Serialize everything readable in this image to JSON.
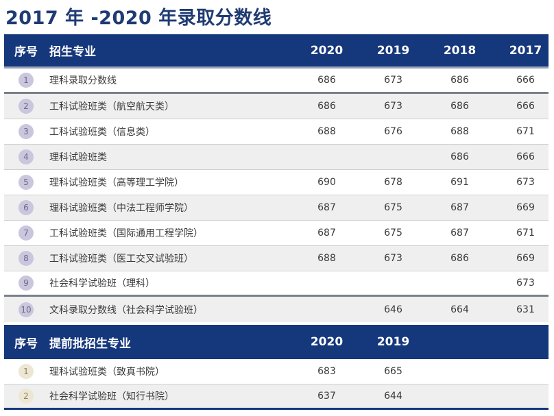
{
  "title": "2017 年 -2020 年录取分数线",
  "table1": {
    "headers": {
      "no": "序号",
      "name": "招生专业",
      "y1": "2020",
      "y2": "2019",
      "y3": "2018",
      "y4": "2017"
    },
    "rows": [
      {
        "no": "1",
        "name": "理科录取分数线",
        "y1": "686",
        "y2": "673",
        "y3": "686",
        "y4": "666"
      },
      {
        "no": "2",
        "name": "工科试验班类（航空航天类）",
        "y1": "686",
        "y2": "673",
        "y3": "686",
        "y4": "666"
      },
      {
        "no": "3",
        "name": "工科试验班类（信息类）",
        "y1": "688",
        "y2": "676",
        "y3": "688",
        "y4": "671"
      },
      {
        "no": "4",
        "name": "理科试验班类",
        "y1": "",
        "y2": "",
        "y3": "686",
        "y4": "666"
      },
      {
        "no": "5",
        "name": "理科试验班类（高等理工学院）",
        "y1": "690",
        "y2": "678",
        "y3": "691",
        "y4": "673"
      },
      {
        "no": "6",
        "name": "理科试验班类（中法工程师学院）",
        "y1": "687",
        "y2": "675",
        "y3": "687",
        "y4": "669"
      },
      {
        "no": "7",
        "name": "工科试验班类（国际通用工程学院）",
        "y1": "687",
        "y2": "675",
        "y3": "687",
        "y4": "671"
      },
      {
        "no": "8",
        "name": "工科试验班类（医工交叉试验班）",
        "y1": "688",
        "y2": "673",
        "y3": "686",
        "y4": "669"
      },
      {
        "no": "9",
        "name": "社会科学试验班（理科）",
        "y1": "",
        "y2": "",
        "y3": "",
        "y4": "673"
      },
      {
        "no": "10",
        "name": "文科录取分数线（社会科学试验班）",
        "y1": "",
        "y2": "646",
        "y3": "664",
        "y4": "631"
      }
    ]
  },
  "table2": {
    "headers": {
      "no": "序号",
      "name": "提前批招生专业",
      "y1": "2020",
      "y2": "2019"
    },
    "rows": [
      {
        "no": "1",
        "name": "理科试验班类（致真书院）",
        "y1": "683",
        "y2": "665"
      },
      {
        "no": "2",
        "name": "社会科学试验班（知行书院）",
        "y1": "637",
        "y2": "644"
      }
    ]
  }
}
